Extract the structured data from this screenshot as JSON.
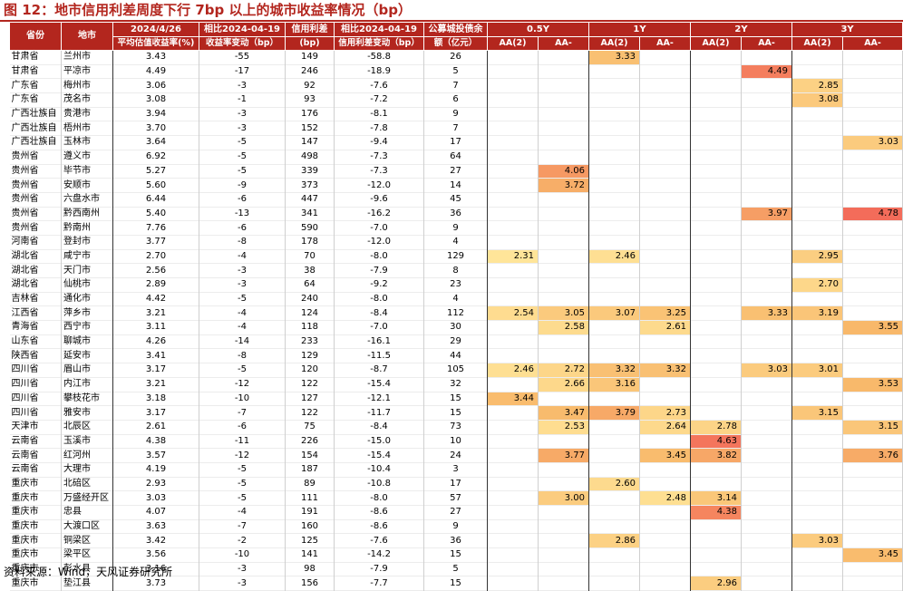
{
  "title": "图 12：地市信用利差周度下行 7bp 以上的城市收益率情况（bp）",
  "source": "资料来源：Wind，天风证券研究所",
  "header": {
    "top": [
      "省份",
      "地市",
      "2024/4/26",
      "相比2024-04-19",
      "信用利差",
      "相比2024-04-19",
      "公募城投债余",
      "0.5Y",
      "1Y",
      "2Y",
      "3Y"
    ],
    "sub": [
      "平均估值收益率(%)",
      "收益率变动（bp）",
      "(bp)",
      "信用利差变动（bp）",
      "额（亿元）",
      "AA(2)",
      "AA-",
      "AA(2)",
      "AA-",
      "AA(2)",
      "AA-",
      "AA(2)",
      "AA-"
    ]
  },
  "colors": {
    "header_bg": "#b3261e",
    "heat_low": "#ffe599",
    "heat_mid": "#f8b86a",
    "heat_high": "#f36b5a"
  },
  "rows": [
    [
      "甘肃省",
      "兰州市",
      "3.43",
      "-55",
      "149",
      "-58.8",
      "26",
      "",
      "",
      "3.33",
      "",
      "",
      "",
      "",
      ""
    ],
    [
      "甘肃省",
      "平凉市",
      "4.49",
      "-17",
      "246",
      "-18.9",
      "5",
      "",
      "",
      "",
      "",
      "",
      "4.49",
      "",
      ""
    ],
    [
      "广东省",
      "梅州市",
      "3.06",
      "-3",
      "92",
      "-7.6",
      "7",
      "",
      "",
      "",
      "",
      "",
      "",
      "2.85",
      ""
    ],
    [
      "广东省",
      "茂名市",
      "3.08",
      "-1",
      "93",
      "-7.2",
      "6",
      "",
      "",
      "",
      "",
      "",
      "",
      "3.08",
      ""
    ],
    [
      "广西壮族自",
      "贵港市",
      "3.94",
      "-3",
      "176",
      "-8.1",
      "9",
      "",
      "",
      "",
      "",
      "",
      "",
      "",
      ""
    ],
    [
      "广西壮族自",
      "梧州市",
      "3.70",
      "-3",
      "152",
      "-7.8",
      "7",
      "",
      "",
      "",
      "",
      "",
      "",
      "",
      ""
    ],
    [
      "广西壮族自",
      "玉林市",
      "3.64",
      "-5",
      "147",
      "-9.4",
      "17",
      "",
      "",
      "",
      "",
      "",
      "",
      "",
      "3.03"
    ],
    [
      "贵州省",
      "遵义市",
      "6.92",
      "-5",
      "498",
      "-7.3",
      "64",
      "",
      "",
      "",
      "",
      "",
      "",
      "",
      ""
    ],
    [
      "贵州省",
      "毕节市",
      "5.27",
      "-5",
      "339",
      "-7.3",
      "27",
      "",
      "4.06",
      "",
      "",
      "",
      "",
      "",
      ""
    ],
    [
      "贵州省",
      "安顺市",
      "5.60",
      "-9",
      "373",
      "-12.0",
      "14",
      "",
      "3.72",
      "",
      "",
      "",
      "",
      "",
      ""
    ],
    [
      "贵州省",
      "六盘水市",
      "6.44",
      "-6",
      "447",
      "-9.6",
      "45",
      "",
      "",
      "",
      "",
      "",
      "",
      "",
      ""
    ],
    [
      "贵州省",
      "黔西南州",
      "5.40",
      "-13",
      "341",
      "-16.2",
      "36",
      "",
      "",
      "",
      "",
      "",
      "3.97",
      "",
      "4.78"
    ],
    [
      "贵州省",
      "黔南州",
      "7.76",
      "-6",
      "590",
      "-7.0",
      "9",
      "",
      "",
      "",
      "",
      "",
      "",
      "",
      ""
    ],
    [
      "河南省",
      "登封市",
      "3.77",
      "-8",
      "178",
      "-12.0",
      "4",
      "",
      "",
      "",
      "",
      "",
      "",
      "",
      ""
    ],
    [
      "湖北省",
      "咸宁市",
      "2.70",
      "-4",
      "70",
      "-8.0",
      "129",
      "2.31",
      "",
      "2.46",
      "",
      "",
      "",
      "2.95",
      ""
    ],
    [
      "湖北省",
      "天门市",
      "2.56",
      "-3",
      "38",
      "-7.9",
      "8",
      "",
      "",
      "",
      "",
      "",
      "",
      "",
      ""
    ],
    [
      "湖北省",
      "仙桃市",
      "2.89",
      "-3",
      "64",
      "-9.2",
      "23",
      "",
      "",
      "",
      "",
      "",
      "",
      "2.70",
      ""
    ],
    [
      "吉林省",
      "通化市",
      "4.42",
      "-5",
      "240",
      "-8.0",
      "4",
      "",
      "",
      "",
      "",
      "",
      "",
      "",
      ""
    ],
    [
      "江西省",
      "萍乡市",
      "3.21",
      "-4",
      "124",
      "-8.4",
      "112",
      "2.54",
      "3.05",
      "3.07",
      "3.25",
      "",
      "3.33",
      "3.19",
      ""
    ],
    [
      "青海省",
      "西宁市",
      "3.11",
      "-4",
      "118",
      "-7.0",
      "30",
      "",
      "2.58",
      "",
      "2.61",
      "",
      "",
      "",
      "3.55"
    ],
    [
      "山东省",
      "聊城市",
      "4.26",
      "-14",
      "233",
      "-16.1",
      "29",
      "",
      "",
      "",
      "",
      "",
      "",
      "",
      ""
    ],
    [
      "陕西省",
      "延安市",
      "3.41",
      "-8",
      "129",
      "-11.5",
      "44",
      "",
      "",
      "",
      "",
      "",
      "",
      "",
      ""
    ],
    [
      "四川省",
      "眉山市",
      "3.17",
      "-5",
      "120",
      "-8.7",
      "105",
      "2.46",
      "2.72",
      "3.32",
      "3.32",
      "",
      "3.03",
      "3.01",
      ""
    ],
    [
      "四川省",
      "内江市",
      "3.21",
      "-12",
      "122",
      "-15.4",
      "32",
      "",
      "2.66",
      "3.16",
      "",
      "",
      "",
      "",
      "3.53"
    ],
    [
      "四川省",
      "攀枝花市",
      "3.18",
      "-10",
      "127",
      "-12.1",
      "15",
      "3.44",
      "",
      "",
      "",
      "",
      "",
      "",
      ""
    ],
    [
      "四川省",
      "雅安市",
      "3.17",
      "-7",
      "122",
      "-11.7",
      "15",
      "",
      "3.47",
      "3.79",
      "2.73",
      "",
      "",
      "3.15",
      ""
    ],
    [
      "天津市",
      "北辰区",
      "2.61",
      "-6",
      "75",
      "-8.4",
      "73",
      "",
      "2.53",
      "",
      "2.64",
      "2.78",
      "",
      "",
      "3.15"
    ],
    [
      "云南省",
      "玉溪市",
      "4.38",
      "-11",
      "226",
      "-15.0",
      "10",
      "",
      "",
      "",
      "",
      "4.63",
      "",
      "",
      ""
    ],
    [
      "云南省",
      "红河州",
      "3.57",
      "-12",
      "154",
      "-15.4",
      "24",
      "",
      "3.77",
      "",
      "3.45",
      "3.82",
      "",
      "",
      "3.76"
    ],
    [
      "云南省",
      "大理市",
      "4.19",
      "-5",
      "187",
      "-10.4",
      "3",
      "",
      "",
      "",
      "",
      "",
      "",
      "",
      ""
    ],
    [
      "重庆市",
      "北碚区",
      "2.93",
      "-5",
      "89",
      "-10.8",
      "17",
      "",
      "",
      "2.60",
      "",
      "",
      "",
      "",
      ""
    ],
    [
      "重庆市",
      "万盛经开区",
      "3.03",
      "-5",
      "111",
      "-8.0",
      "57",
      "",
      "3.00",
      "",
      "2.48",
      "3.14",
      "",
      "",
      ""
    ],
    [
      "重庆市",
      "忠县",
      "4.07",
      "-4",
      "191",
      "-8.6",
      "27",
      "",
      "",
      "",
      "",
      "4.38",
      "",
      "",
      ""
    ],
    [
      "重庆市",
      "大渡口区",
      "3.63",
      "-7",
      "160",
      "-8.6",
      "9",
      "",
      "",
      "",
      "",
      "",
      "",
      "",
      ""
    ],
    [
      "重庆市",
      "铜梁区",
      "3.42",
      "-2",
      "125",
      "-7.6",
      "36",
      "",
      "",
      "2.86",
      "",
      "",
      "",
      "3.03",
      ""
    ],
    [
      "重庆市",
      "梁平区",
      "3.56",
      "-10",
      "141",
      "-14.2",
      "15",
      "",
      "",
      "",
      "",
      "",
      "",
      "",
      "3.45"
    ],
    [
      "重庆市",
      "彭水县",
      "3.16",
      "-3",
      "98",
      "-7.9",
      "5",
      "",
      "",
      "",
      "",
      "",
      "",
      "",
      ""
    ],
    [
      "重庆市",
      "垫江县",
      "3.73",
      "-3",
      "156",
      "-7.7",
      "15",
      "",
      "",
      "",
      "",
      "2.96",
      "",
      "",
      ""
    ]
  ]
}
